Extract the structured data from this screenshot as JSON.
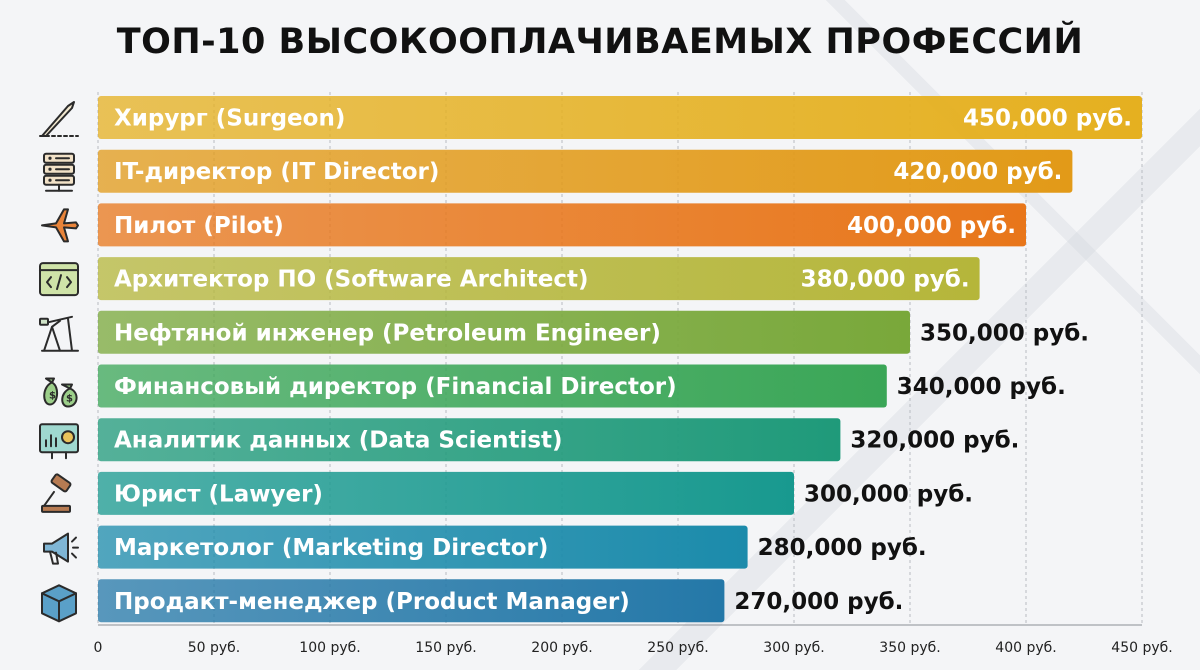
{
  "title": "ТОП-10 ВЫСОКООПЛАЧИВАЕМЫХ ПРОФЕССИЙ",
  "chart_data": {
    "type": "bar",
    "orientation": "horizontal",
    "categories": [
      "Хирург (Surgeon)",
      "IT-директор (IT Director)",
      "Пилот (Pilot)",
      "Архитектор ПО (Software Architect)",
      "Нефтяной инженер (Petroleum Engineer)",
      "Финансовый директор (Financial Director)",
      "Аналитик данных (Data Scientist)",
      "Юрист (Lawyer)",
      "Маркетолог (Marketing Director)",
      "Продакт-менеджер (Product Manager)"
    ],
    "values": [
      450000,
      420000,
      400000,
      380000,
      350000,
      340000,
      320000,
      300000,
      280000,
      270000
    ],
    "value_labels": [
      "450,000 руб.",
      "420,000 руб.",
      "400,000 руб.",
      "380,000 руб.",
      "350,000 руб.",
      "340,000 руб.",
      "320,000 руб.",
      "300,000 руб.",
      "280,000 руб.",
      "270,000 руб."
    ],
    "x_ticks": [
      "0",
      "50 руб.",
      "100 руб.",
      "150 руб.",
      "200 руб.",
      "250 руб.",
      "300 руб.",
      "350 руб.",
      "400 руб.",
      "450 руб."
    ],
    "xlim": [
      0,
      450
    ],
    "grid": true,
    "colors": [
      "#e5b020",
      "#e29a18",
      "#e8761a",
      "#b5b63a",
      "#79a83a",
      "#3aa657",
      "#1f9a7a",
      "#18998f",
      "#1b8bab",
      "#2478a8"
    ],
    "icons": [
      "scalpel-icon",
      "server-icon",
      "airplane-icon",
      "code-window-icon",
      "oil-pump-icon",
      "money-bags-icon",
      "analytics-dashboard-icon",
      "gavel-icon",
      "megaphone-icon",
      "box-icon"
    ]
  }
}
